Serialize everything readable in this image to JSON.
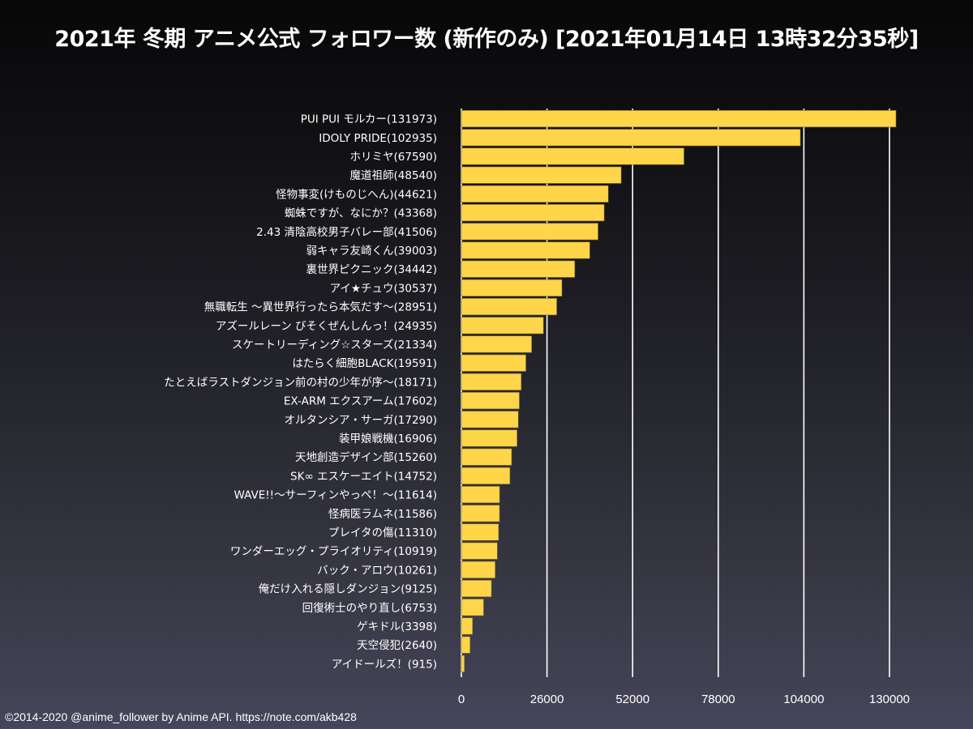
{
  "chart_data": {
    "type": "bar",
    "orientation": "horizontal",
    "title": "2021年 冬期 アニメ公式 フォロワー数 (新作のみ) [2021年01月14日 13時32分35秒]",
    "xlabel": "",
    "ylabel": "",
    "xlim": [
      0,
      130000
    ],
    "ticks": [
      "0",
      "26000",
      "52000",
      "78000",
      "104000",
      "130000"
    ],
    "tick_values": [
      0,
      26000,
      52000,
      78000,
      104000,
      130000
    ],
    "grid": true,
    "bar_color": "#ffd54a",
    "categories": [
      "PUI PUI モルカー(131973)",
      "IDOLY PRIDE(102935)",
      "ホリミヤ(67590)",
      "魔道祖師(48540)",
      "怪物事変(けものじへん)(44621)",
      "蜘蛛ですが、なにか？(43368)",
      "2.43 清陰高校男子バレー部(41506)",
      "弱キャラ友崎くん(39003)",
      "裏世界ピクニック(34442)",
      "アイ★チュウ(30537)",
      "無職転生 ～異世界行ったら本気だす～(28951)",
      "アズールレーン びそくぜんしんっ！(24935)",
      "スケートリーディング☆スターズ(21334)",
      "はたらく細胞BLACK(19591)",
      "たとえばラストダンジョン前の村の少年が序～(18171)",
      "EX-ARM エクスアーム(17602)",
      "オルタンシア・サーガ(17290)",
      "装甲娘戦機(16906)",
      "天地創造デザイン部(15260)",
      "SK∞ エスケーエイト(14752)",
      "WAVE!!～サーフィンやっぺ！～(11614)",
      "怪病医ラムネ(11586)",
      "プレイタの傷(11310)",
      "ワンダーエッグ・プライオリティ(10919)",
      "バック・アロウ(10261)",
      "俺だけ入れる隠しダンジョン(9125)",
      "回復術士のやり直し(6753)",
      "ゲキドル(3398)",
      "天空侵犯(2640)",
      "アイドールズ！(915)"
    ],
    "values": [
      131973,
      102935,
      67590,
      48540,
      44621,
      43368,
      41506,
      39003,
      34442,
      30537,
      28951,
      24935,
      21334,
      19591,
      18171,
      17602,
      17290,
      16906,
      15260,
      14752,
      11614,
      11586,
      11310,
      10919,
      10261,
      9125,
      6753,
      3398,
      2640,
      915
    ]
  },
  "footer": {
    "credit": "©2014-2020 @anime_follower by Anime API. https://note.com/akb428"
  }
}
